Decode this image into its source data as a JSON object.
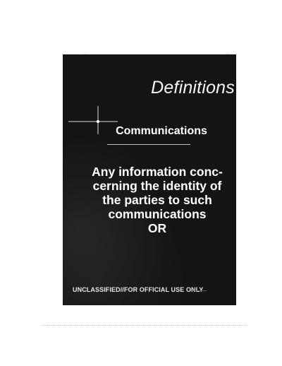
{
  "slide": {
    "title": "Definitions",
    "subtitle": "Communications",
    "body_lines": [
      "Any information conc-",
      "cerning the identity of",
      "the parties to such",
      "communications",
      "OR"
    ],
    "classification": "UNCLASSIFIED//FOR OFFICIAL USE ONLY"
  },
  "colors": {
    "slide_background": "#141414",
    "text": "#ffffff",
    "strike_mark": "#c0392b"
  }
}
